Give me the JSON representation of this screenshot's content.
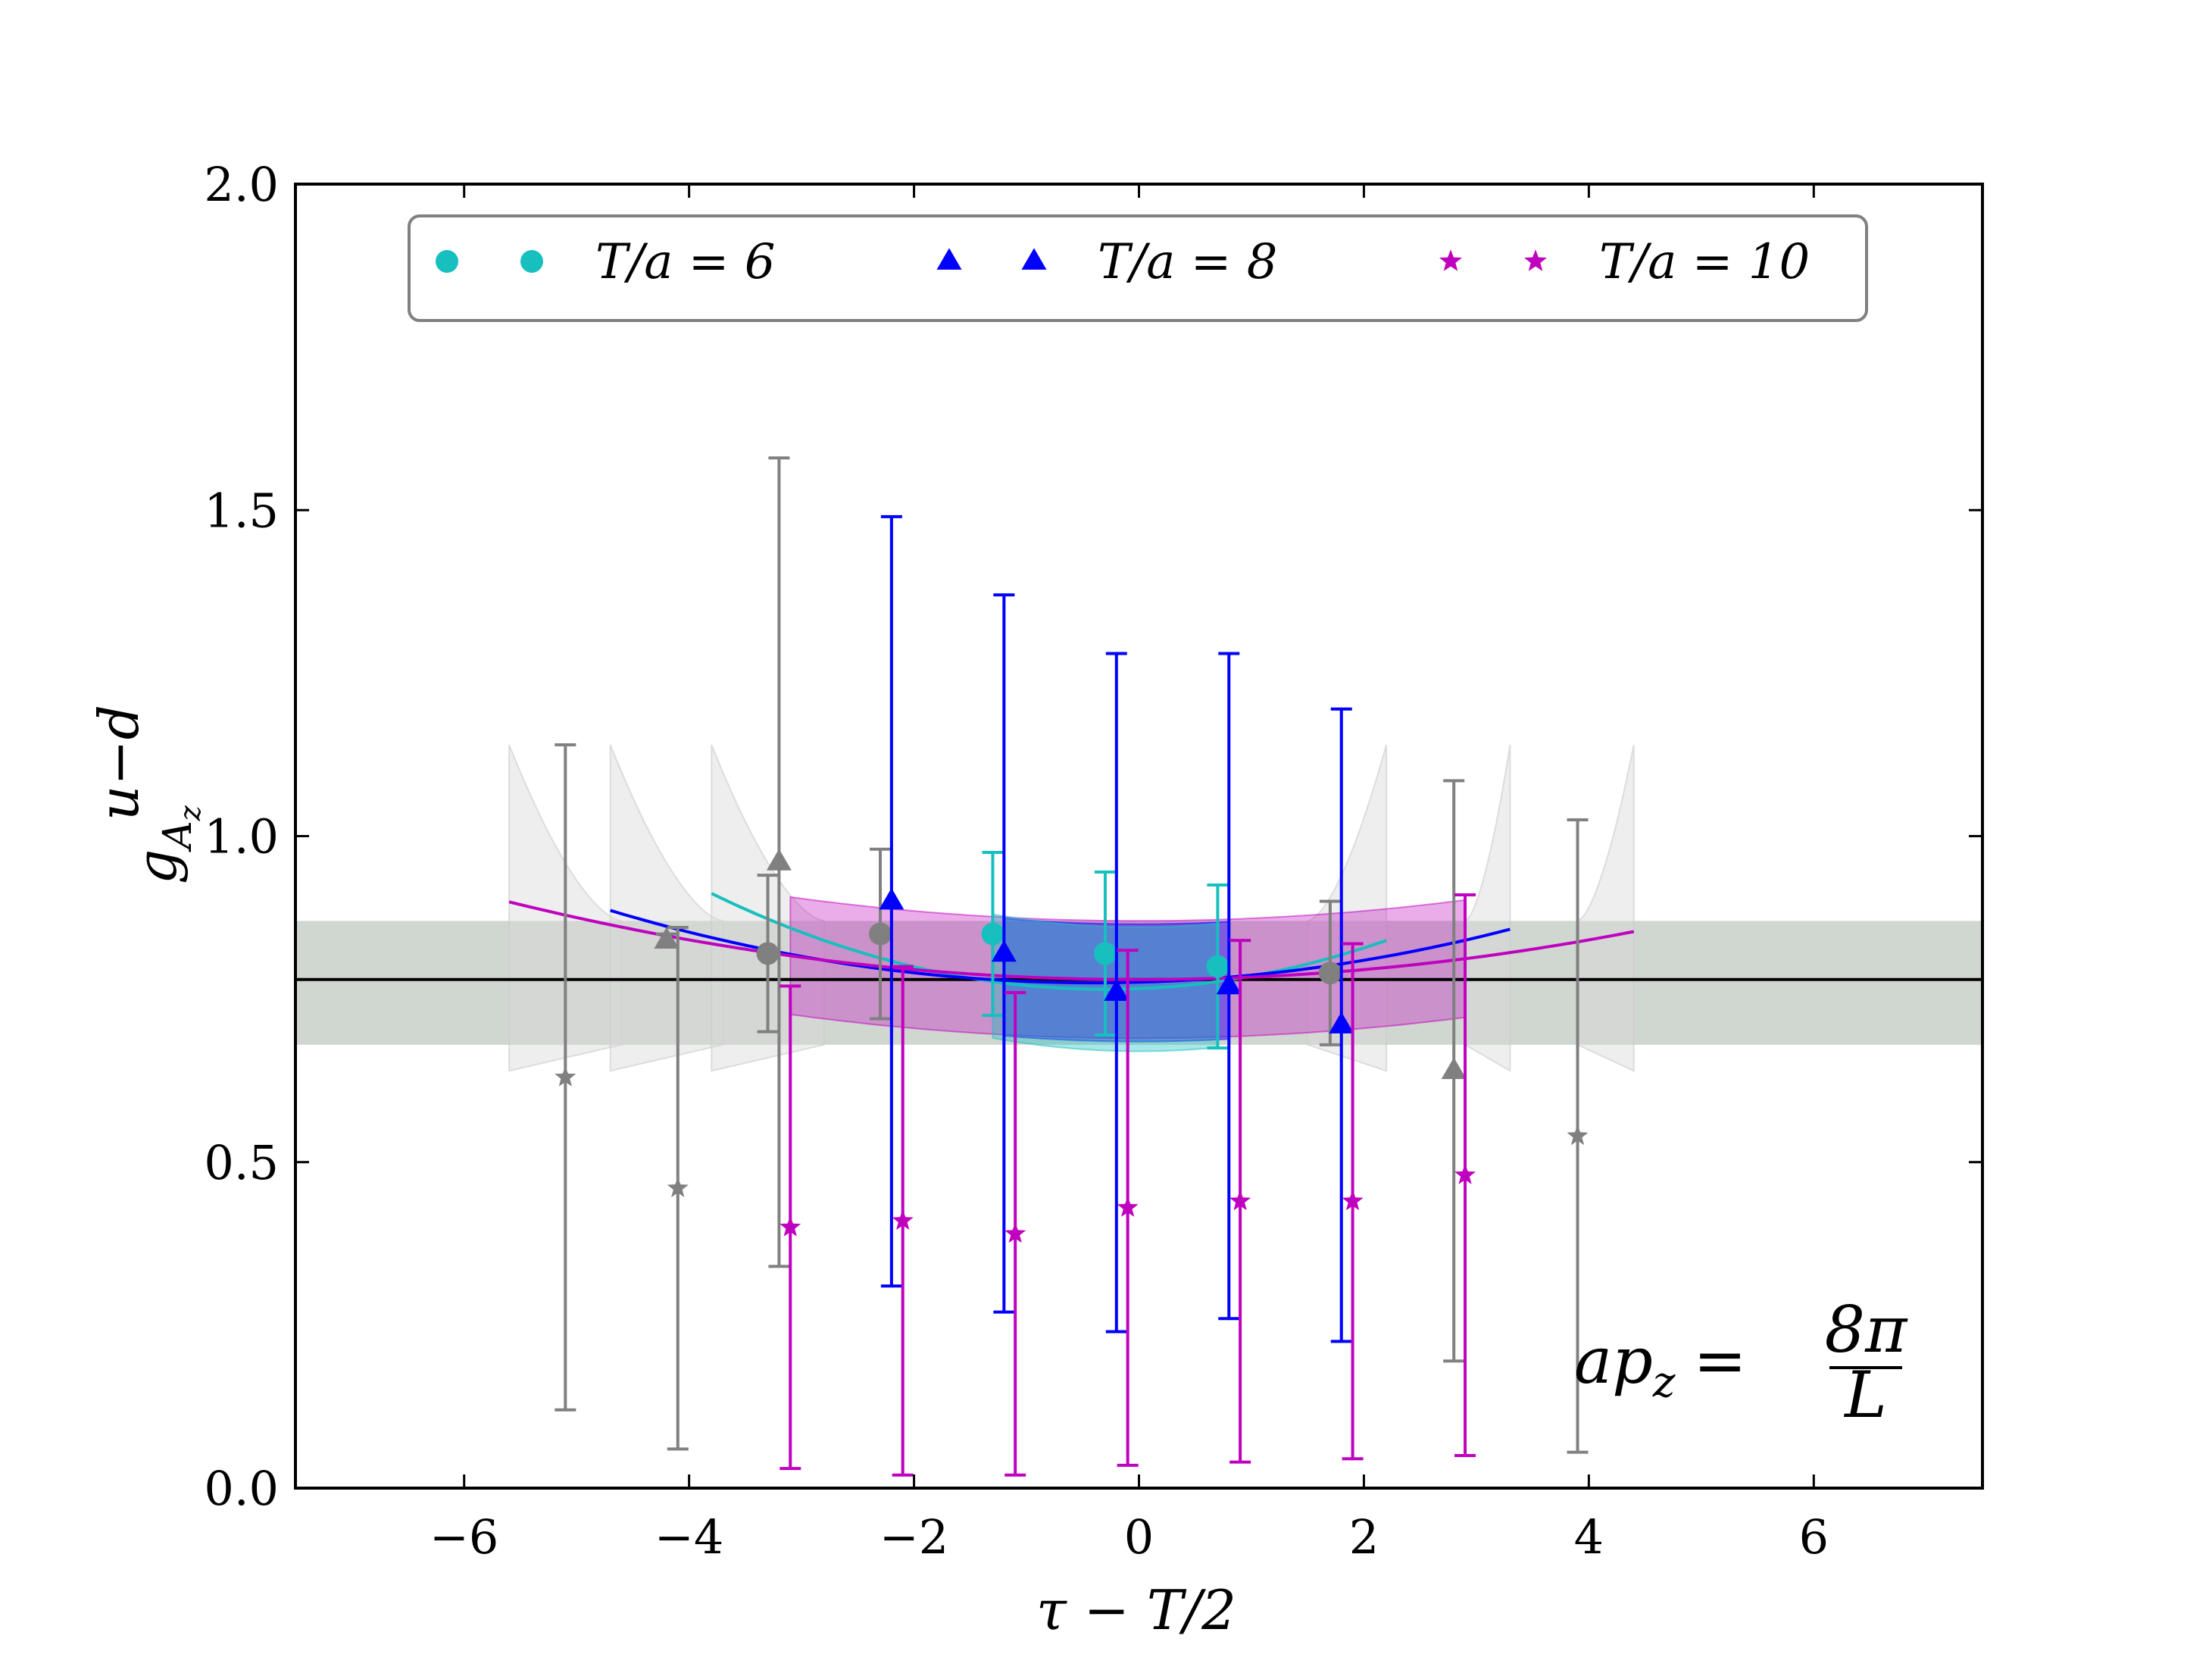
{
  "chart_data": {
    "type": "scatter",
    "xlabel": "τ − T/2",
    "ylabel": "g",
    "ylabel_superscript": "u−d",
    "ylabel_subscript": "A",
    "ylabel_subsubscript": "z",
    "xlim": [
      -7.5,
      7.5
    ],
    "ylim": [
      0.0,
      2.0
    ],
    "xticks": [
      -6,
      -4,
      -2,
      0,
      2,
      4,
      6
    ],
    "xtick_labels": [
      "−6",
      "−4",
      "−2",
      "0",
      "2",
      "4",
      "6"
    ],
    "yticks": [
      0.0,
      0.5,
      1.0,
      1.5,
      2.0
    ],
    "ytick_labels": [
      "0.0",
      "0.5",
      "1.0",
      "1.5",
      "2.0"
    ],
    "grid": false,
    "legend_position": "top",
    "annotation": {
      "lhs": "ap",
      "lhs_sub": "z",
      "eq": "=",
      "numerator": "8π",
      "denominator": "L",
      "position": "bottom-right"
    },
    "reference_line": {
      "value": 0.78,
      "band": [
        0.68,
        0.87
      ],
      "color": "#000000",
      "band_color": "#c8cfc8"
    },
    "series": [
      {
        "name": "T/a = 6",
        "legend_label": "T/a = 6",
        "marker": "circle",
        "color": "#17bfbf",
        "points": [
          {
            "x": -3.3,
            "y": 0.82,
            "err": 0.12,
            "excluded": true
          },
          {
            "x": -2.3,
            "y": 0.85,
            "err": 0.13,
            "excluded": true
          },
          {
            "x": -1.3,
            "y": 0.85,
            "err": 0.125
          },
          {
            "x": -0.3,
            "y": 0.82,
            "err": 0.125
          },
          {
            "x": 0.7,
            "y": 0.8,
            "err": 0.125
          },
          {
            "x": 1.7,
            "y": 0.79,
            "err": 0.11,
            "excluded": true
          }
        ],
        "fit_x": [
          -3.8,
          2.2
        ],
        "fit_y0": 0.765,
        "fit_curv": 0.012,
        "band_x": [
          -1.3,
          0.7
        ],
        "band_half": 0.095
      },
      {
        "name": "T/a = 8",
        "legend_label": "T/a = 8",
        "marker": "triangle",
        "color": "#0000ff",
        "points": [
          {
            "x": -4.2,
            "y": 0.84,
            "err": 0.01,
            "excluded": true
          },
          {
            "x": -3.2,
            "y": 0.96,
            "err": 0.62,
            "excluded": true
          },
          {
            "x": -2.2,
            "y": 0.9,
            "err": 0.59
          },
          {
            "x": -1.2,
            "y": 0.82,
            "err": 0.55
          },
          {
            "x": -0.2,
            "y": 0.76,
            "err": 0.52
          },
          {
            "x": 0.8,
            "y": 0.77,
            "err": 0.51
          },
          {
            "x": 1.8,
            "y": 0.71,
            "err": 0.485
          },
          {
            "x": 2.8,
            "y": 0.64,
            "err": 0.445,
            "excluded": true
          }
        ],
        "fit_x": [
          -4.7,
          3.3
        ],
        "fit_y0": 0.775,
        "fit_curv": 0.006,
        "band_x": [
          -1.2,
          0.8
        ],
        "band_half": 0.09
      },
      {
        "name": "T/a = 10",
        "legend_label": "T/a = 10",
        "marker": "star",
        "color": "#bf00bf",
        "points": [
          {
            "x": -5.1,
            "y": 0.63,
            "err": 0.51,
            "excluded": true
          },
          {
            "x": -4.1,
            "y": 0.46,
            "err": 0.4,
            "excluded": true
          },
          {
            "x": -3.1,
            "y": 0.4,
            "err": 0.37
          },
          {
            "x": -2.1,
            "y": 0.41,
            "err": 0.39
          },
          {
            "x": -1.1,
            "y": 0.39,
            "err": 0.37
          },
          {
            "x": -0.1,
            "y": 0.43,
            "err": 0.395
          },
          {
            "x": 0.9,
            "y": 0.44,
            "err": 0.4
          },
          {
            "x": 1.9,
            "y": 0.44,
            "err": 0.395
          },
          {
            "x": 2.9,
            "y": 0.48,
            "err": 0.43
          },
          {
            "x": 3.9,
            "y": 0.54,
            "err": 0.485,
            "excluded": true
          }
        ],
        "fit_x": [
          -5.6,
          4.4
        ],
        "fit_y0": 0.78,
        "fit_curv": 0.0038,
        "band_x": [
          -3.1,
          2.9
        ],
        "band_half": 0.09
      }
    ],
    "excluded_color": "#808080",
    "excluded_band_regions": [
      [
        -5.6,
        -4.6
      ],
      [
        -4.7,
        -3.7
      ],
      [
        -3.8,
        -2.8
      ],
      [
        1.5,
        2.2
      ],
      [
        2.9,
        3.3
      ],
      [
        3.9,
        4.4
      ]
    ]
  }
}
